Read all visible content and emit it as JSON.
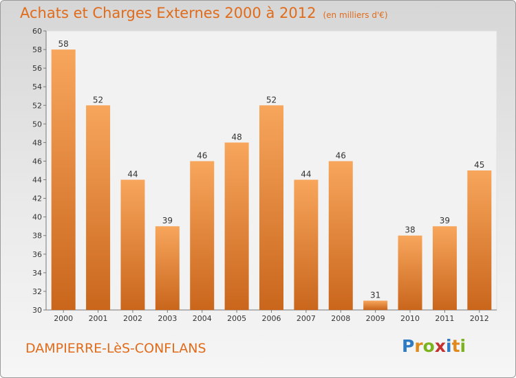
{
  "title": "Achats et Charges Externes 2000 à 2012",
  "unit": "(en milliers d'€)",
  "commune": "DAMPIERRE-LèS-CONFLANS",
  "logo": {
    "p": "P",
    "r": "r",
    "o": "o",
    "x": "x",
    "i": "i",
    "t": "t",
    "i2": "i"
  },
  "colors": {
    "bar_top": "#f7a65c",
    "bar_bottom": "#c9661c",
    "title": "#e06b1a"
  },
  "chart_data": {
    "type": "bar",
    "categories": [
      "2000",
      "2001",
      "2002",
      "2003",
      "2004",
      "2005",
      "2006",
      "2007",
      "2008",
      "2009",
      "2010",
      "2011",
      "2012"
    ],
    "values": [
      58,
      52,
      44,
      39,
      46,
      48,
      52,
      44,
      46,
      31,
      38,
      39,
      45
    ],
    "ylim": [
      30,
      60
    ],
    "yticks": [
      30,
      32,
      34,
      36,
      38,
      40,
      42,
      44,
      46,
      48,
      50,
      52,
      54,
      56,
      58,
      60
    ],
    "grid": false
  }
}
